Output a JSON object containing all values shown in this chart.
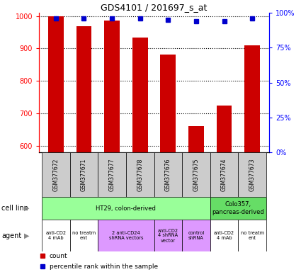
{
  "title": "GDS4101 / 201697_s_at",
  "samples": [
    "GSM377672",
    "GSM377671",
    "GSM377677",
    "GSM377678",
    "GSM377676",
    "GSM377675",
    "GSM377674",
    "GSM377673"
  ],
  "counts": [
    1000,
    968,
    985,
    933,
    882,
    660,
    723,
    910
  ],
  "percentile_ranks": [
    96,
    96,
    96,
    96,
    95,
    94,
    94,
    96
  ],
  "ylim_left": [
    580,
    1010
  ],
  "ylim_right": [
    0,
    100
  ],
  "yticks_left": [
    600,
    700,
    800,
    900,
    1000
  ],
  "yticks_right": [
    0,
    25,
    50,
    75,
    100
  ],
  "bar_color": "#cc0000",
  "dot_color": "#0000cc",
  "cell_line_labels": [
    {
      "text": "HT29, colon-derived",
      "start": 0,
      "end": 5,
      "color": "#99ff99"
    },
    {
      "text": "Colo357,\npancreas-derived",
      "start": 6,
      "end": 7,
      "color": "#66dd66"
    }
  ],
  "agent_labels": [
    {
      "text": "anti-CD2\n4 mAb",
      "start": 0,
      "end": 0,
      "color": "#ffffff"
    },
    {
      "text": "no treatm\nent",
      "start": 1,
      "end": 1,
      "color": "#ffffff"
    },
    {
      "text": "2 anti-CD24\nshRNA vectors",
      "start": 2,
      "end": 3,
      "color": "#dd99ff"
    },
    {
      "text": "anti-CD2\n4 shRNA\nvector",
      "start": 4,
      "end": 4,
      "color": "#dd99ff"
    },
    {
      "text": "control\nshRNA",
      "start": 5,
      "end": 5,
      "color": "#dd99ff"
    },
    {
      "text": "anti-CD2\n4 mAb",
      "start": 6,
      "end": 6,
      "color": "#ffffff"
    },
    {
      "text": "no treatm\nent",
      "start": 7,
      "end": 7,
      "color": "#ffffff"
    }
  ],
  "legend_count_color": "#cc0000",
  "legend_pct_color": "#0000cc",
  "background_color": "#ffffff"
}
